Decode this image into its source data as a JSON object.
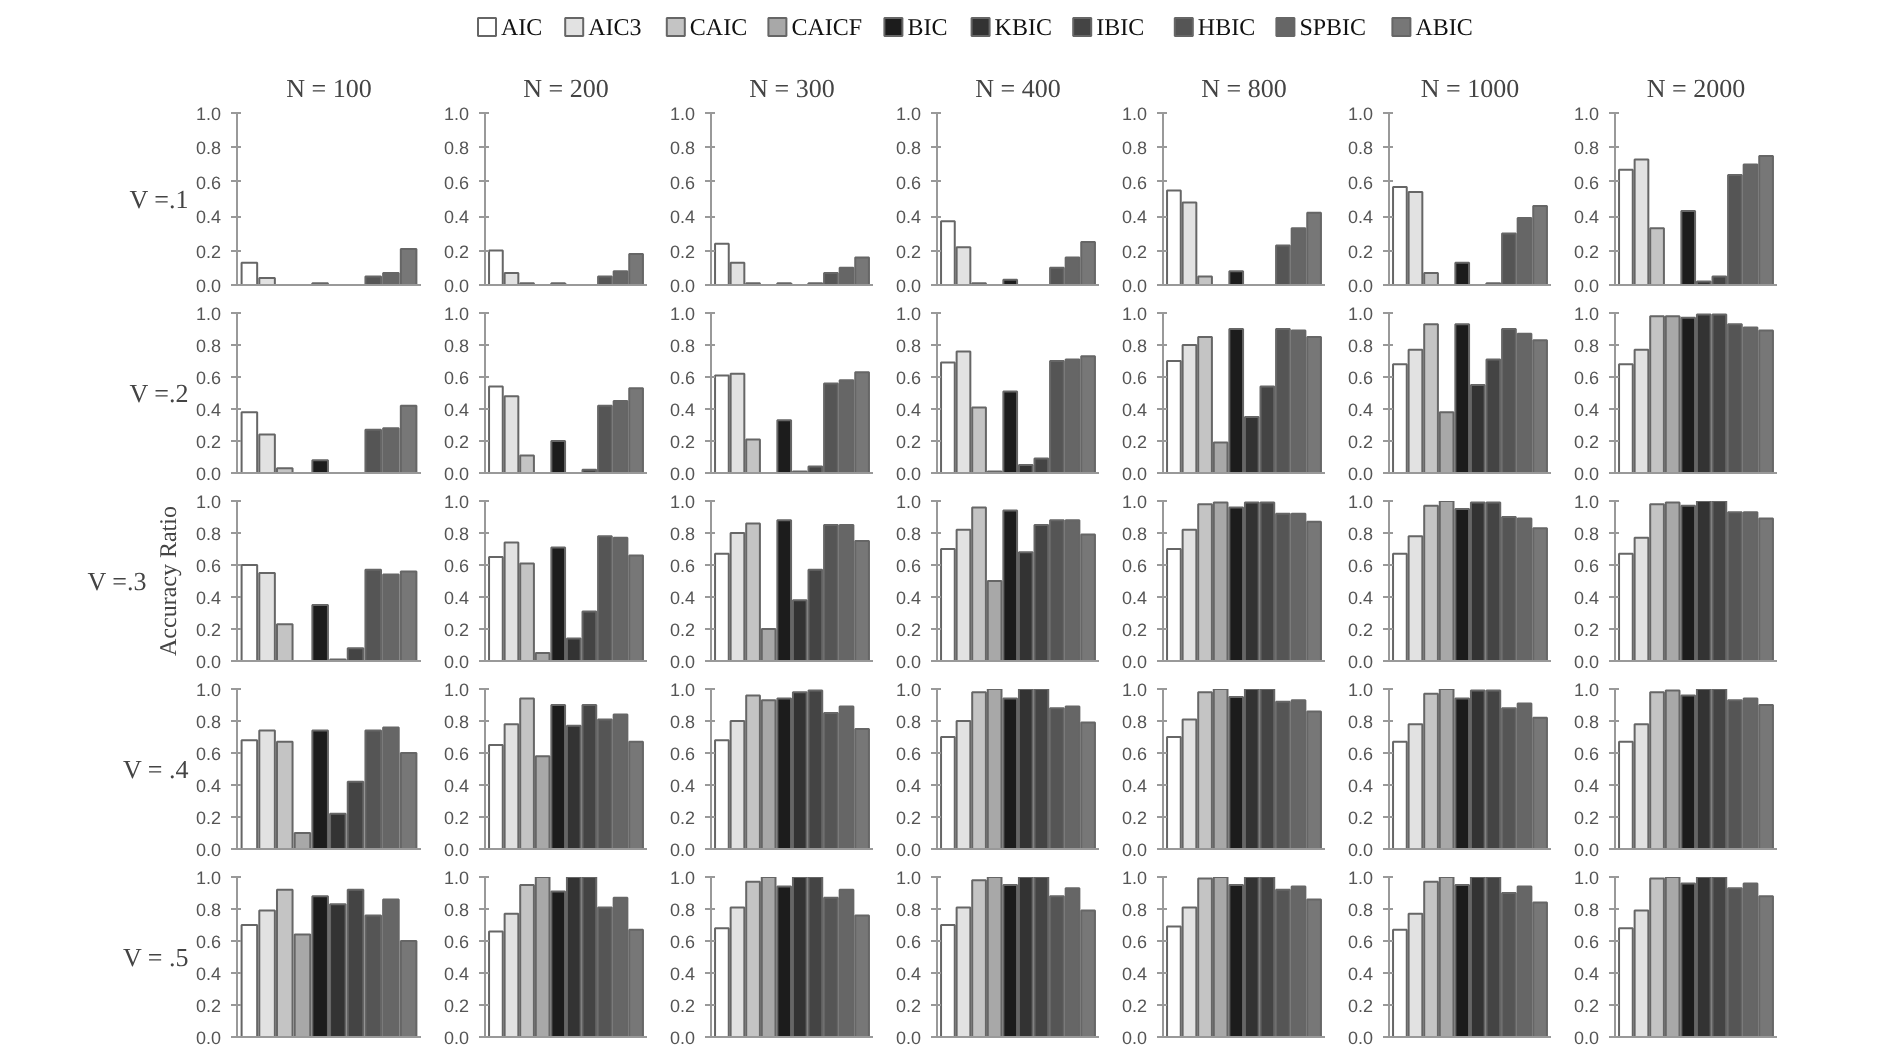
{
  "chart_data": [
    {
      "type": "bar",
      "title": "N = 100",
      "ylabel": "V =.1",
      "legend": "top",
      "categories": [
        null
      ],
      "series": [
        {
          "name": "AIC",
          "color": "#ffffff",
          "values": [
            0.13
          ]
        },
        {
          "name": "AIC3",
          "color": "#e2e2e2",
          "values": [
            0.04
          ]
        },
        {
          "name": "CAIC",
          "color": "#c4c4c4",
          "values": [
            0
          ]
        },
        {
          "name": "CAICF",
          "color": "#a8a8a8",
          "values": [
            0
          ]
        },
        {
          "name": "BIC",
          "color": "#1c1c1c",
          "values": [
            0.01
          ]
        },
        {
          "name": "KBIC",
          "color": "#333333",
          "values": [
            0
          ]
        },
        {
          "name": "IBIC",
          "color": "#444444",
          "values": [
            0
          ]
        },
        {
          "name": "HBIC",
          "color": "#555555",
          "values": [
            0.05
          ]
        },
        {
          "name": "SPBIC",
          "color": "#666666",
          "values": [
            0.07
          ]
        },
        {
          "name": "ABIC",
          "color": "#777777",
          "values": [
            0.21
          ]
        }
      ],
      "ylim": [
        0,
        1
      ],
      "yticks": [
        {
          "value": 0,
          "label": "0.0"
        },
        {
          "value": 0.2,
          "label": "0.2"
        },
        {
          "value": 0.4,
          "label": "0.4"
        },
        {
          "value": 0.6,
          "label": "0.6"
        },
        {
          "value": 0.8,
          "label": "0.8"
        },
        {
          "value": 1,
          "label": "1.0"
        }
      ],
      "tick_labels": "y"
    },
    {
      "type": "bar",
      "title": "N = 200",
      "categories": [
        null,
        null,
        null,
        null,
        null,
        null,
        null,
        null,
        null,
        null
      ],
      "values": [
        0.2,
        0.07,
        0.01,
        0,
        0.01,
        0,
        0,
        0.05,
        0.08,
        0.18
      ],
      "colors": [
        "#ffffff",
        "#e2e2e2",
        "#c4c4c4",
        "#a8a8a8",
        "#1c1c1c",
        "#333333",
        "#444444",
        "#555555",
        "#666666",
        "#777777"
      ],
      "ylim": [
        0,
        1
      ],
      "yticks": [
        {
          "value": 0,
          "label": "0.0"
        },
        {
          "value": 0.2,
          "label": "0.2"
        },
        {
          "value": 0.4,
          "label": "0.4"
        },
        {
          "value": 0.6,
          "label": "0.6"
        },
        {
          "value": 0.8,
          "label": "0.8"
        },
        {
          "value": 1,
          "label": "1.0"
        }
      ],
      "tick_labels": "y"
    },
    {
      "type": "bar",
      "title": "N = 300",
      "categories": [
        null,
        null,
        null,
        null,
        null,
        null,
        null,
        null,
        null,
        null
      ],
      "values": [
        0.24,
        0.13,
        0.01,
        0,
        0.01,
        0,
        0.01,
        0.07,
        0.1,
        0.16
      ],
      "colors": [
        "#ffffff",
        "#e2e2e2",
        "#c4c4c4",
        "#a8a8a8",
        "#1c1c1c",
        "#333333",
        "#444444",
        "#555555",
        "#666666",
        "#777777"
      ],
      "ylim": [
        0,
        1
      ],
      "yticks": [
        {
          "value": 0,
          "label": "0.0"
        },
        {
          "value": 0.2,
          "label": "0.2"
        },
        {
          "value": 0.4,
          "label": "0.4"
        },
        {
          "value": 0.6,
          "label": "0.6"
        },
        {
          "value": 0.8,
          "label": "0.8"
        },
        {
          "value": 1,
          "label": "1.0"
        }
      ],
      "tick_labels": "y"
    },
    {
      "type": "bar",
      "title": "N = 400",
      "categories": [
        null,
        null,
        null,
        null,
        null,
        null,
        null,
        null,
        null,
        null
      ],
      "values": [
        0.37,
        0.22,
        0.01,
        0,
        0.03,
        0,
        0,
        0.1,
        0.16,
        0.25
      ],
      "colors": [
        "#ffffff",
        "#e2e2e2",
        "#c4c4c4",
        "#a8a8a8",
        "#1c1c1c",
        "#333333",
        "#444444",
        "#555555",
        "#666666",
        "#777777"
      ],
      "ylim": [
        0,
        1
      ],
      "yticks": [
        {
          "value": 0,
          "label": "0.0"
        },
        {
          "value": 0.2,
          "label": "0.2"
        },
        {
          "value": 0.4,
          "label": "0.4"
        },
        {
          "value": 0.6,
          "label": "0.6"
        },
        {
          "value": 0.8,
          "label": "0.8"
        },
        {
          "value": 1,
          "label": "1.0"
        }
      ],
      "tick_labels": "y"
    },
    {
      "type": "bar",
      "title": "N = 800",
      "categories": [
        null,
        null,
        null,
        null,
        null,
        null,
        null,
        null,
        null,
        null
      ],
      "values": [
        0.55,
        0.48,
        0.05,
        0,
        0.08,
        0,
        0,
        0.23,
        0.33,
        0.42
      ],
      "colors": [
        "#ffffff",
        "#e2e2e2",
        "#c4c4c4",
        "#a8a8a8",
        "#1c1c1c",
        "#333333",
        "#444444",
        "#555555",
        "#666666",
        "#777777"
      ],
      "ylim": [
        0,
        1
      ],
      "yticks": [
        {
          "value": 0,
          "label": "0.0"
        },
        {
          "value": 0.2,
          "label": "0.2"
        },
        {
          "value": 0.4,
          "label": "0.4"
        },
        {
          "value": 0.6,
          "label": "0.6"
        },
        {
          "value": 0.8,
          "label": "0.8"
        },
        {
          "value": 1,
          "label": "1.0"
        }
      ],
      "tick_labels": "y"
    },
    {
      "type": "bar",
      "title": "N = 1000",
      "categories": [
        null,
        null,
        null,
        null,
        null,
        null,
        null,
        null,
        null,
        null
      ],
      "values": [
        0.57,
        0.54,
        0.07,
        0,
        0.13,
        0,
        0.01,
        0.3,
        0.39,
        0.46
      ],
      "colors": [
        "#ffffff",
        "#e2e2e2",
        "#c4c4c4",
        "#a8a8a8",
        "#1c1c1c",
        "#333333",
        "#444444",
        "#555555",
        "#666666",
        "#777777"
      ],
      "ylim": [
        0,
        1
      ],
      "yticks": [
        {
          "value": 0,
          "label": "0.0"
        },
        {
          "value": 0.2,
          "label": "0.2"
        },
        {
          "value": 0.4,
          "label": "0.4"
        },
        {
          "value": 0.6,
          "label": "0.6"
        },
        {
          "value": 0.8,
          "label": "0.8"
        },
        {
          "value": 1,
          "label": "1.0"
        }
      ],
      "tick_labels": "y"
    },
    {
      "type": "bar",
      "title": "N = 2000",
      "categories": [
        null,
        null,
        null,
        null,
        null,
        null,
        null,
        null,
        null,
        null
      ],
      "values": [
        0.67,
        0.73,
        0.33,
        0,
        0.43,
        0.02,
        0.05,
        0.64,
        0.7,
        0.75
      ],
      "colors": [
        "#ffffff",
        "#e2e2e2",
        "#c4c4c4",
        "#a8a8a8",
        "#1c1c1c",
        "#333333",
        "#444444",
        "#555555",
        "#666666",
        "#777777"
      ],
      "ylim": [
        0,
        1
      ],
      "yticks": [
        {
          "value": 0,
          "label": "0.0"
        },
        {
          "value": 0.2,
          "label": "0.2"
        },
        {
          "value": 0.4,
          "label": "0.4"
        },
        {
          "value": 0.6,
          "label": "0.6"
        },
        {
          "value": 0.8,
          "label": "0.8"
        },
        {
          "value": 1,
          "label": "1.0"
        }
      ],
      "tick_labels": "y"
    },
    {
      "type": "bar",
      "ylabel": "V =.2",
      "categories": [
        null,
        null,
        null,
        null,
        null,
        null,
        null,
        null,
        null,
        null
      ],
      "values": [
        0.38,
        0.24,
        0.03,
        0,
        0.08,
        0,
        0,
        0.27,
        0.28,
        0.42
      ],
      "colors": [
        "#ffffff",
        "#e2e2e2",
        "#c4c4c4",
        "#a8a8a8",
        "#1c1c1c",
        "#333333",
        "#444444",
        "#555555",
        "#666666",
        "#777777"
      ],
      "ylim": [
        0,
        1
      ],
      "yticks": [
        {
          "value": 0,
          "label": "0.0"
        },
        {
          "value": 0.2,
          "label": "0.2"
        },
        {
          "value": 0.4,
          "label": "0.4"
        },
        {
          "value": 0.6,
          "label": "0.6"
        },
        {
          "value": 0.8,
          "label": "0.8"
        },
        {
          "value": 1,
          "label": "1.0"
        }
      ],
      "tick_labels": "y"
    },
    {
      "type": "bar",
      "categories": [
        null,
        null,
        null,
        null,
        null,
        null,
        null,
        null,
        null,
        null
      ],
      "values": [
        0.54,
        0.48,
        0.11,
        0,
        0.2,
        0,
        0.02,
        0.42,
        0.45,
        0.53
      ],
      "colors": [
        "#ffffff",
        "#e2e2e2",
        "#c4c4c4",
        "#a8a8a8",
        "#1c1c1c",
        "#333333",
        "#444444",
        "#555555",
        "#666666",
        "#777777"
      ],
      "ylim": [
        0,
        1
      ],
      "yticks": [
        {
          "value": 0,
          "label": "0.0"
        },
        {
          "value": 0.2,
          "label": "0.2"
        },
        {
          "value": 0.4,
          "label": "0.4"
        },
        {
          "value": 0.6,
          "label": "0.6"
        },
        {
          "value": 0.8,
          "label": "0.8"
        },
        {
          "value": 1,
          "label": "1.0"
        }
      ],
      "tick_labels": "y"
    },
    {
      "type": "bar",
      "categories": [
        null,
        null,
        null,
        null,
        null,
        null,
        null,
        null,
        null,
        null
      ],
      "values": [
        0.61,
        0.62,
        0.21,
        0,
        0.33,
        0.01,
        0.04,
        0.56,
        0.58,
        0.63
      ],
      "colors": [
        "#ffffff",
        "#e2e2e2",
        "#c4c4c4",
        "#a8a8a8",
        "#1c1c1c",
        "#333333",
        "#444444",
        "#555555",
        "#666666",
        "#777777"
      ],
      "ylim": [
        0,
        1
      ],
      "yticks": [
        {
          "value": 0,
          "label": "0.0"
        },
        {
          "value": 0.2,
          "label": "0.2"
        },
        {
          "value": 0.4,
          "label": "0.4"
        },
        {
          "value": 0.6,
          "label": "0.6"
        },
        {
          "value": 0.8,
          "label": "0.8"
        },
        {
          "value": 1,
          "label": "1.0"
        }
      ],
      "tick_labels": "y"
    },
    {
      "type": "bar",
      "categories": [
        null,
        null,
        null,
        null,
        null,
        null,
        null,
        null,
        null,
        null
      ],
      "values": [
        0.69,
        0.76,
        0.41,
        0.01,
        0.51,
        0.05,
        0.09,
        0.7,
        0.71,
        0.73
      ],
      "colors": [
        "#ffffff",
        "#e2e2e2",
        "#c4c4c4",
        "#a8a8a8",
        "#1c1c1c",
        "#333333",
        "#444444",
        "#555555",
        "#666666",
        "#777777"
      ],
      "ylim": [
        0,
        1
      ],
      "yticks": [
        {
          "value": 0,
          "label": "0.0"
        },
        {
          "value": 0.2,
          "label": "0.2"
        },
        {
          "value": 0.4,
          "label": "0.4"
        },
        {
          "value": 0.6,
          "label": "0.6"
        },
        {
          "value": 0.8,
          "label": "0.8"
        },
        {
          "value": 1,
          "label": "1.0"
        }
      ],
      "tick_labels": "y"
    },
    {
      "type": "bar",
      "categories": [
        null,
        null,
        null,
        null,
        null,
        null,
        null,
        null,
        null,
        null
      ],
      "values": [
        0.7,
        0.8,
        0.85,
        0.19,
        0.9,
        0.35,
        0.54,
        0.9,
        0.89,
        0.85
      ],
      "colors": [
        "#ffffff",
        "#e2e2e2",
        "#c4c4c4",
        "#a8a8a8",
        "#1c1c1c",
        "#333333",
        "#444444",
        "#555555",
        "#666666",
        "#777777"
      ],
      "ylim": [
        0,
        1
      ],
      "yticks": [
        {
          "value": 0,
          "label": "0.0"
        },
        {
          "value": 0.2,
          "label": "0.2"
        },
        {
          "value": 0.4,
          "label": "0.4"
        },
        {
          "value": 0.6,
          "label": "0.6"
        },
        {
          "value": 0.8,
          "label": "0.8"
        },
        {
          "value": 1,
          "label": "1.0"
        }
      ],
      "tick_labels": "y"
    },
    {
      "type": "bar",
      "categories": [
        null,
        null,
        null,
        null,
        null,
        null,
        null,
        null,
        null,
        null
      ],
      "values": [
        0.68,
        0.77,
        0.93,
        0.38,
        0.93,
        0.55,
        0.71,
        0.9,
        0.87,
        0.83
      ],
      "colors": [
        "#ffffff",
        "#e2e2e2",
        "#c4c4c4",
        "#a8a8a8",
        "#1c1c1c",
        "#333333",
        "#444444",
        "#555555",
        "#666666",
        "#777777"
      ],
      "ylim": [
        0,
        1
      ],
      "yticks": [
        {
          "value": 0,
          "label": "0.0"
        },
        {
          "value": 0.2,
          "label": "0.2"
        },
        {
          "value": 0.4,
          "label": "0.4"
        },
        {
          "value": 0.6,
          "label": "0.6"
        },
        {
          "value": 0.8,
          "label": "0.8"
        },
        {
          "value": 1,
          "label": "1.0"
        }
      ],
      "tick_labels": "y"
    },
    {
      "type": "bar",
      "categories": [
        null,
        null,
        null,
        null,
        null,
        null,
        null,
        null,
        null,
        null
      ],
      "values": [
        0.68,
        0.77,
        0.98,
        0.98,
        0.97,
        0.99,
        0.99,
        0.93,
        0.91,
        0.89
      ],
      "colors": [
        "#ffffff",
        "#e2e2e2",
        "#c4c4c4",
        "#a8a8a8",
        "#1c1c1c",
        "#333333",
        "#444444",
        "#555555",
        "#666666",
        "#777777"
      ],
      "ylim": [
        0,
        1
      ],
      "yticks": [
        {
          "value": 0,
          "label": "0.0"
        },
        {
          "value": 0.2,
          "label": "0.2"
        },
        {
          "value": 0.4,
          "label": "0.4"
        },
        {
          "value": 0.6,
          "label": "0.6"
        },
        {
          "value": 0.8,
          "label": "0.8"
        },
        {
          "value": 1,
          "label": "1.0"
        }
      ],
      "tick_labels": "y"
    },
    {
      "type": "bar",
      "ylabel": "V =.3",
      "annotations": [
        "Accuracy Ratio"
      ],
      "categories": [
        null,
        null,
        null,
        null,
        null,
        null,
        null,
        null,
        null,
        null
      ],
      "values": [
        0.6,
        0.55,
        0.23,
        0,
        0.35,
        0.01,
        0.08,
        0.57,
        0.54,
        0.56
      ],
      "colors": [
        "#ffffff",
        "#e2e2e2",
        "#c4c4c4",
        "#a8a8a8",
        "#1c1c1c",
        "#333333",
        "#444444",
        "#555555",
        "#666666",
        "#777777"
      ],
      "ylim": [
        0,
        1
      ],
      "yticks": [
        {
          "value": 0,
          "label": "0.0"
        },
        {
          "value": 0.2,
          "label": "0.2"
        },
        {
          "value": 0.4,
          "label": "0.4"
        },
        {
          "value": 0.6,
          "label": "0.6"
        },
        {
          "value": 0.8,
          "label": "0.8"
        },
        {
          "value": 1,
          "label": "1.0"
        }
      ],
      "tick_labels": "y"
    },
    {
      "type": "bar",
      "categories": [
        null,
        null,
        null,
        null,
        null,
        null,
        null,
        null,
        null,
        null
      ],
      "values": [
        0.65,
        0.74,
        0.61,
        0.05,
        0.71,
        0.14,
        0.31,
        0.78,
        0.77,
        0.66
      ],
      "colors": [
        "#ffffff",
        "#e2e2e2",
        "#c4c4c4",
        "#a8a8a8",
        "#1c1c1c",
        "#333333",
        "#444444",
        "#555555",
        "#666666",
        "#777777"
      ],
      "ylim": [
        0,
        1
      ],
      "yticks": [
        {
          "value": 0,
          "label": "0.0"
        },
        {
          "value": 0.2,
          "label": "0.2"
        },
        {
          "value": 0.4,
          "label": "0.4"
        },
        {
          "value": 0.6,
          "label": "0.6"
        },
        {
          "value": 0.8,
          "label": "0.8"
        },
        {
          "value": 1,
          "label": "1.0"
        }
      ],
      "tick_labels": "y"
    },
    {
      "type": "bar",
      "categories": [
        null,
        null,
        null,
        null,
        null,
        null,
        null,
        null,
        null,
        null
      ],
      "values": [
        0.67,
        0.8,
        0.86,
        0.2,
        0.88,
        0.38,
        0.57,
        0.85,
        0.85,
        0.75
      ],
      "colors": [
        "#ffffff",
        "#e2e2e2",
        "#c4c4c4",
        "#a8a8a8",
        "#1c1c1c",
        "#333333",
        "#444444",
        "#555555",
        "#666666",
        "#777777"
      ],
      "ylim": [
        0,
        1
      ],
      "yticks": [
        {
          "value": 0,
          "label": "0.0"
        },
        {
          "value": 0.2,
          "label": "0.2"
        },
        {
          "value": 0.4,
          "label": "0.4"
        },
        {
          "value": 0.6,
          "label": "0.6"
        },
        {
          "value": 0.8,
          "label": "0.8"
        },
        {
          "value": 1,
          "label": "1.0"
        }
      ],
      "tick_labels": "y"
    },
    {
      "type": "bar",
      "categories": [
        null,
        null,
        null,
        null,
        null,
        null,
        null,
        null,
        null,
        null
      ],
      "values": [
        0.7,
        0.82,
        0.96,
        0.5,
        0.94,
        0.68,
        0.85,
        0.88,
        0.88,
        0.79
      ],
      "colors": [
        "#ffffff",
        "#e2e2e2",
        "#c4c4c4",
        "#a8a8a8",
        "#1c1c1c",
        "#333333",
        "#444444",
        "#555555",
        "#666666",
        "#777777"
      ],
      "ylim": [
        0,
        1
      ],
      "yticks": [
        {
          "value": 0,
          "label": "0.0"
        },
        {
          "value": 0.2,
          "label": "0.2"
        },
        {
          "value": 0.4,
          "label": "0.4"
        },
        {
          "value": 0.6,
          "label": "0.6"
        },
        {
          "value": 0.8,
          "label": "0.8"
        },
        {
          "value": 1,
          "label": "1.0"
        }
      ],
      "tick_labels": "y"
    },
    {
      "type": "bar",
      "categories": [
        null,
        null,
        null,
        null,
        null,
        null,
        null,
        null,
        null,
        null
      ],
      "values": [
        0.7,
        0.82,
        0.98,
        0.99,
        0.96,
        0.99,
        0.99,
        0.92,
        0.92,
        0.87
      ],
      "colors": [
        "#ffffff",
        "#e2e2e2",
        "#c4c4c4",
        "#a8a8a8",
        "#1c1c1c",
        "#333333",
        "#444444",
        "#555555",
        "#666666",
        "#777777"
      ],
      "ylim": [
        0,
        1
      ],
      "yticks": [
        {
          "value": 0,
          "label": "0.0"
        },
        {
          "value": 0.2,
          "label": "0.2"
        },
        {
          "value": 0.4,
          "label": "0.4"
        },
        {
          "value": 0.6,
          "label": "0.6"
        },
        {
          "value": 0.8,
          "label": "0.8"
        },
        {
          "value": 1,
          "label": "1.0"
        }
      ],
      "tick_labels": "y"
    },
    {
      "type": "bar",
      "categories": [
        null,
        null,
        null,
        null,
        null,
        null,
        null,
        null,
        null,
        null
      ],
      "values": [
        0.67,
        0.78,
        0.97,
        1,
        0.95,
        0.99,
        0.99,
        0.9,
        0.89,
        0.83
      ],
      "colors": [
        "#ffffff",
        "#e2e2e2",
        "#c4c4c4",
        "#a8a8a8",
        "#1c1c1c",
        "#333333",
        "#444444",
        "#555555",
        "#666666",
        "#777777"
      ],
      "ylim": [
        0,
        1
      ],
      "yticks": [
        {
          "value": 0,
          "label": "0.0"
        },
        {
          "value": 0.2,
          "label": "0.2"
        },
        {
          "value": 0.4,
          "label": "0.4"
        },
        {
          "value": 0.6,
          "label": "0.6"
        },
        {
          "value": 0.8,
          "label": "0.8"
        },
        {
          "value": 1,
          "label": "1.0"
        }
      ],
      "tick_labels": "y"
    },
    {
      "type": "bar",
      "categories": [
        null,
        null,
        null,
        null,
        null,
        null,
        null,
        null,
        null,
        null
      ],
      "values": [
        0.67,
        0.77,
        0.98,
        0.99,
        0.97,
        1,
        1,
        0.93,
        0.93,
        0.89
      ],
      "colors": [
        "#ffffff",
        "#e2e2e2",
        "#c4c4c4",
        "#a8a8a8",
        "#1c1c1c",
        "#333333",
        "#444444",
        "#555555",
        "#666666",
        "#777777"
      ],
      "ylim": [
        0,
        1
      ],
      "yticks": [
        {
          "value": 0,
          "label": "0.0"
        },
        {
          "value": 0.2,
          "label": "0.2"
        },
        {
          "value": 0.4,
          "label": "0.4"
        },
        {
          "value": 0.6,
          "label": "0.6"
        },
        {
          "value": 0.8,
          "label": "0.8"
        },
        {
          "value": 1,
          "label": "1.0"
        }
      ],
      "tick_labels": "y"
    },
    {
      "type": "bar",
      "ylabel": "V = .4",
      "categories": [
        null,
        null,
        null,
        null,
        null,
        null,
        null,
        null,
        null,
        null
      ],
      "values": [
        0.68,
        0.74,
        0.67,
        0.1,
        0.74,
        0.22,
        0.42,
        0.74,
        0.76,
        0.6
      ],
      "colors": [
        "#ffffff",
        "#e2e2e2",
        "#c4c4c4",
        "#a8a8a8",
        "#1c1c1c",
        "#333333",
        "#444444",
        "#555555",
        "#666666",
        "#777777"
      ],
      "ylim": [
        0,
        1
      ],
      "yticks": [
        {
          "value": 0,
          "label": "0.0"
        },
        {
          "value": 0.2,
          "label": "0.2"
        },
        {
          "value": 0.4,
          "label": "0.4"
        },
        {
          "value": 0.6,
          "label": "0.6"
        },
        {
          "value": 0.8,
          "label": "0.8"
        },
        {
          "value": 1,
          "label": "1.0"
        }
      ],
      "tick_labels": "y"
    },
    {
      "type": "bar",
      "categories": [
        null,
        null,
        null,
        null,
        null,
        null,
        null,
        null,
        null,
        null
      ],
      "values": [
        0.65,
        0.78,
        0.94,
        0.58,
        0.9,
        0.77,
        0.9,
        0.81,
        0.84,
        0.67
      ],
      "colors": [
        "#ffffff",
        "#e2e2e2",
        "#c4c4c4",
        "#a8a8a8",
        "#1c1c1c",
        "#333333",
        "#444444",
        "#555555",
        "#666666",
        "#777777"
      ],
      "ylim": [
        0,
        1
      ],
      "yticks": [
        {
          "value": 0,
          "label": "0.0"
        },
        {
          "value": 0.2,
          "label": "0.2"
        },
        {
          "value": 0.4,
          "label": "0.4"
        },
        {
          "value": 0.6,
          "label": "0.6"
        },
        {
          "value": 0.8,
          "label": "0.8"
        },
        {
          "value": 1,
          "label": "1.0"
        }
      ],
      "tick_labels": "y"
    },
    {
      "type": "bar",
      "categories": [
        null,
        null,
        null,
        null,
        null,
        null,
        null,
        null,
        null,
        null
      ],
      "values": [
        0.68,
        0.8,
        0.96,
        0.93,
        0.94,
        0.98,
        0.99,
        0.85,
        0.89,
        0.75
      ],
      "colors": [
        "#ffffff",
        "#e2e2e2",
        "#c4c4c4",
        "#a8a8a8",
        "#1c1c1c",
        "#333333",
        "#444444",
        "#555555",
        "#666666",
        "#777777"
      ],
      "ylim": [
        0,
        1
      ],
      "yticks": [
        {
          "value": 0,
          "label": "0.0"
        },
        {
          "value": 0.2,
          "label": "0.2"
        },
        {
          "value": 0.4,
          "label": "0.4"
        },
        {
          "value": 0.6,
          "label": "0.6"
        },
        {
          "value": 0.8,
          "label": "0.8"
        },
        {
          "value": 1,
          "label": "1.0"
        }
      ],
      "tick_labels": "y"
    },
    {
      "type": "bar",
      "categories": [
        null,
        null,
        null,
        null,
        null,
        null,
        null,
        null,
        null,
        null
      ],
      "values": [
        0.7,
        0.8,
        0.98,
        1,
        0.94,
        1,
        1,
        0.88,
        0.89,
        0.79
      ],
      "colors": [
        "#ffffff",
        "#e2e2e2",
        "#c4c4c4",
        "#a8a8a8",
        "#1c1c1c",
        "#333333",
        "#444444",
        "#555555",
        "#666666",
        "#777777"
      ],
      "ylim": [
        0,
        1
      ],
      "yticks": [
        {
          "value": 0,
          "label": "0.0"
        },
        {
          "value": 0.2,
          "label": "0.2"
        },
        {
          "value": 0.4,
          "label": "0.4"
        },
        {
          "value": 0.6,
          "label": "0.6"
        },
        {
          "value": 0.8,
          "label": "0.8"
        },
        {
          "value": 1,
          "label": "1.0"
        }
      ],
      "tick_labels": "y"
    },
    {
      "type": "bar",
      "categories": [
        null,
        null,
        null,
        null,
        null,
        null,
        null,
        null,
        null,
        null
      ],
      "values": [
        0.7,
        0.81,
        0.98,
        1,
        0.95,
        1,
        1,
        0.92,
        0.93,
        0.86
      ],
      "colors": [
        "#ffffff",
        "#e2e2e2",
        "#c4c4c4",
        "#a8a8a8",
        "#1c1c1c",
        "#333333",
        "#444444",
        "#555555",
        "#666666",
        "#777777"
      ],
      "ylim": [
        0,
        1
      ],
      "yticks": [
        {
          "value": 0,
          "label": "0.0"
        },
        {
          "value": 0.2,
          "label": "0.2"
        },
        {
          "value": 0.4,
          "label": "0.4"
        },
        {
          "value": 0.6,
          "label": "0.6"
        },
        {
          "value": 0.8,
          "label": "0.8"
        },
        {
          "value": 1,
          "label": "1.0"
        }
      ],
      "tick_labels": "y"
    },
    {
      "type": "bar",
      "categories": [
        null,
        null,
        null,
        null,
        null,
        null,
        null,
        null,
        null,
        null
      ],
      "values": [
        0.67,
        0.78,
        0.97,
        1,
        0.94,
        0.99,
        0.99,
        0.88,
        0.91,
        0.82
      ],
      "colors": [
        "#ffffff",
        "#e2e2e2",
        "#c4c4c4",
        "#a8a8a8",
        "#1c1c1c",
        "#333333",
        "#444444",
        "#555555",
        "#666666",
        "#777777"
      ],
      "ylim": [
        0,
        1
      ],
      "yticks": [
        {
          "value": 0,
          "label": "0.0"
        },
        {
          "value": 0.2,
          "label": "0.2"
        },
        {
          "value": 0.4,
          "label": "0.4"
        },
        {
          "value": 0.6,
          "label": "0.6"
        },
        {
          "value": 0.8,
          "label": "0.8"
        },
        {
          "value": 1,
          "label": "1.0"
        }
      ],
      "tick_labels": "y"
    },
    {
      "type": "bar",
      "categories": [
        null,
        null,
        null,
        null,
        null,
        null,
        null,
        null,
        null,
        null
      ],
      "values": [
        0.67,
        0.78,
        0.98,
        0.99,
        0.96,
        1,
        1,
        0.93,
        0.94,
        0.9
      ],
      "colors": [
        "#ffffff",
        "#e2e2e2",
        "#c4c4c4",
        "#a8a8a8",
        "#1c1c1c",
        "#333333",
        "#444444",
        "#555555",
        "#666666",
        "#777777"
      ],
      "ylim": [
        0,
        1
      ],
      "yticks": [
        {
          "value": 0,
          "label": "0.0"
        },
        {
          "value": 0.2,
          "label": "0.2"
        },
        {
          "value": 0.4,
          "label": "0.4"
        },
        {
          "value": 0.6,
          "label": "0.6"
        },
        {
          "value": 0.8,
          "label": "0.8"
        },
        {
          "value": 1,
          "label": "1.0"
        }
      ],
      "tick_labels": "y"
    },
    {
      "type": "bar",
      "ylabel": "V = .5",
      "categories": [
        null,
        null,
        null,
        null,
        null,
        null,
        null,
        null,
        null,
        null
      ],
      "values": [
        0.7,
        0.79,
        0.92,
        0.64,
        0.88,
        0.83,
        0.92,
        0.76,
        0.86,
        0.6
      ],
      "colors": [
        "#ffffff",
        "#e2e2e2",
        "#c4c4c4",
        "#a8a8a8",
        "#1c1c1c",
        "#333333",
        "#444444",
        "#555555",
        "#666666",
        "#777777"
      ],
      "ylim": [
        0,
        1
      ],
      "yticks": [
        {
          "value": 0,
          "label": "0.0"
        },
        {
          "value": 0.2,
          "label": "0.2"
        },
        {
          "value": 0.4,
          "label": "0.4"
        },
        {
          "value": 0.6,
          "label": "0.6"
        },
        {
          "value": 0.8,
          "label": "0.8"
        },
        {
          "value": 1,
          "label": "1.0"
        }
      ],
      "tick_labels": "y"
    },
    {
      "type": "bar",
      "categories": [
        null,
        null,
        null,
        null,
        null,
        null,
        null,
        null,
        null,
        null
      ],
      "values": [
        0.66,
        0.77,
        0.95,
        1,
        0.91,
        1,
        1,
        0.81,
        0.87,
        0.67
      ],
      "colors": [
        "#ffffff",
        "#e2e2e2",
        "#c4c4c4",
        "#a8a8a8",
        "#1c1c1c",
        "#333333",
        "#444444",
        "#555555",
        "#666666",
        "#777777"
      ],
      "ylim": [
        0,
        1
      ],
      "yticks": [
        {
          "value": 0,
          "label": "0.0"
        },
        {
          "value": 0.2,
          "label": "0.2"
        },
        {
          "value": 0.4,
          "label": "0.4"
        },
        {
          "value": 0.6,
          "label": "0.6"
        },
        {
          "value": 0.8,
          "label": "0.8"
        },
        {
          "value": 1,
          "label": "1.0"
        }
      ],
      "tick_labels": "y"
    },
    {
      "type": "bar",
      "categories": [
        null,
        null,
        null,
        null,
        null,
        null,
        null,
        null,
        null,
        null
      ],
      "values": [
        0.68,
        0.81,
        0.97,
        1,
        0.94,
        1,
        1,
        0.87,
        0.92,
        0.76
      ],
      "colors": [
        "#ffffff",
        "#e2e2e2",
        "#c4c4c4",
        "#a8a8a8",
        "#1c1c1c",
        "#333333",
        "#444444",
        "#555555",
        "#666666",
        "#777777"
      ],
      "ylim": [
        0,
        1
      ],
      "yticks": [
        {
          "value": 0,
          "label": "0.0"
        },
        {
          "value": 0.2,
          "label": "0.2"
        },
        {
          "value": 0.4,
          "label": "0.4"
        },
        {
          "value": 0.6,
          "label": "0.6"
        },
        {
          "value": 0.8,
          "label": "0.8"
        },
        {
          "value": 1,
          "label": "1.0"
        }
      ],
      "tick_labels": "y"
    },
    {
      "type": "bar",
      "categories": [
        null,
        null,
        null,
        null,
        null,
        null,
        null,
        null,
        null,
        null
      ],
      "values": [
        0.7,
        0.81,
        0.98,
        1,
        0.95,
        1,
        1,
        0.88,
        0.93,
        0.79
      ],
      "colors": [
        "#ffffff",
        "#e2e2e2",
        "#c4c4c4",
        "#a8a8a8",
        "#1c1c1c",
        "#333333",
        "#444444",
        "#555555",
        "#666666",
        "#777777"
      ],
      "ylim": [
        0,
        1
      ],
      "yticks": [
        {
          "value": 0,
          "label": "0.0"
        },
        {
          "value": 0.2,
          "label": "0.2"
        },
        {
          "value": 0.4,
          "label": "0.4"
        },
        {
          "value": 0.6,
          "label": "0.6"
        },
        {
          "value": 0.8,
          "label": "0.8"
        },
        {
          "value": 1,
          "label": "1.0"
        }
      ],
      "tick_labels": "y"
    },
    {
      "type": "bar",
      "categories": [
        null,
        null,
        null,
        null,
        null,
        null,
        null,
        null,
        null,
        null
      ],
      "values": [
        0.69,
        0.81,
        0.99,
        1,
        0.95,
        1,
        1,
        0.92,
        0.94,
        0.86
      ],
      "colors": [
        "#ffffff",
        "#e2e2e2",
        "#c4c4c4",
        "#a8a8a8",
        "#1c1c1c",
        "#333333",
        "#444444",
        "#555555",
        "#666666",
        "#777777"
      ],
      "ylim": [
        0,
        1
      ],
      "yticks": [
        {
          "value": 0,
          "label": "0.0"
        },
        {
          "value": 0.2,
          "label": "0.2"
        },
        {
          "value": 0.4,
          "label": "0.4"
        },
        {
          "value": 0.6,
          "label": "0.6"
        },
        {
          "value": 0.8,
          "label": "0.8"
        },
        {
          "value": 1,
          "label": "1.0"
        }
      ],
      "tick_labels": "y"
    },
    {
      "type": "bar",
      "categories": [
        null,
        null,
        null,
        null,
        null,
        null,
        null,
        null,
        null,
        null
      ],
      "values": [
        0.67,
        0.77,
        0.97,
        1,
        0.95,
        1,
        1,
        0.9,
        0.94,
        0.84
      ],
      "colors": [
        "#ffffff",
        "#e2e2e2",
        "#c4c4c4",
        "#a8a8a8",
        "#1c1c1c",
        "#333333",
        "#444444",
        "#555555",
        "#666666",
        "#777777"
      ],
      "ylim": [
        0,
        1
      ],
      "yticks": [
        {
          "value": 0,
          "label": "0.0"
        },
        {
          "value": 0.2,
          "label": "0.2"
        },
        {
          "value": 0.4,
          "label": "0.4"
        },
        {
          "value": 0.6,
          "label": "0.6"
        },
        {
          "value": 0.8,
          "label": "0.8"
        },
        {
          "value": 1,
          "label": "1.0"
        }
      ],
      "tick_labels": "y"
    },
    {
      "type": "bar",
      "categories": [
        null,
        null,
        null,
        null,
        null,
        null,
        null,
        null,
        null,
        null
      ],
      "values": [
        0.68,
        0.79,
        0.99,
        1,
        0.96,
        1,
        1,
        0.93,
        0.96,
        0.88
      ],
      "colors": [
        "#ffffff",
        "#e2e2e2",
        "#c4c4c4",
        "#a8a8a8",
        "#1c1c1c",
        "#333333",
        "#444444",
        "#555555",
        "#666666",
        "#777777"
      ],
      "ylim": [
        0,
        1
      ],
      "yticks": [
        {
          "value": 0,
          "label": "0.0"
        },
        {
          "value": 0.2,
          "label": "0.2"
        },
        {
          "value": 0.4,
          "label": "0.4"
        },
        {
          "value": 0.6,
          "label": "0.6"
        },
        {
          "value": 0.8,
          "label": "0.8"
        },
        {
          "value": 1,
          "label": "1.0"
        }
      ],
      "tick_labels": "y"
    }
  ]
}
